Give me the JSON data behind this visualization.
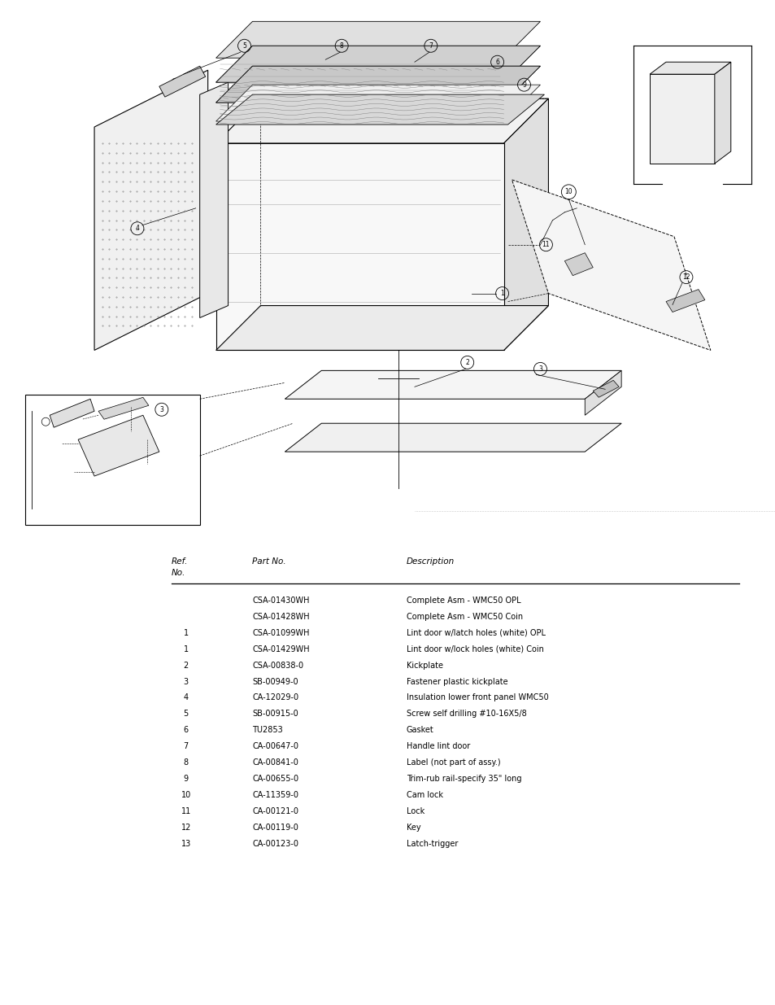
{
  "background_color": "#ffffff",
  "page_width": 9.54,
  "page_height": 12.35,
  "table_header_ref": "Ref.",
  "table_header_no": "No.",
  "table_header_part": "Part No.",
  "table_header_desc": "Description",
  "rows": [
    [
      "",
      "CSA-01430WH",
      "Complete Asm - WMC50 OPL"
    ],
    [
      "",
      "CSA-01428WH",
      "Complete Asm - WMC50 Coin"
    ],
    [
      "1",
      "CSA-01099WH",
      "Lint door w/latch holes (white) OPL"
    ],
    [
      "1",
      "CSA-01429WH",
      "Lint door w/lock holes (white) Coin"
    ],
    [
      "2",
      "CSA-00838-0",
      "Kickplate"
    ],
    [
      "3",
      "SB-00949-0",
      "Fastener plastic kickplate"
    ],
    [
      "4",
      "CA-12029-0",
      "Insulation lower front panel WMC50"
    ],
    [
      "5",
      "SB-00915-0",
      "Screw self drilling #10-16X5/8"
    ],
    [
      "6",
      "TU2853",
      "Gasket"
    ],
    [
      "7",
      "CA-00647-0",
      "Handle lint door"
    ],
    [
      "8",
      "CA-00841-0",
      "Label (not part of assy.)"
    ],
    [
      "9",
      "CA-00655-0",
      "Trim-rub rail-specify 35\" long"
    ],
    [
      "10",
      "CA-11359-0",
      "Cam lock"
    ],
    [
      "11",
      "CA-00121-0",
      "Lock"
    ],
    [
      "12",
      "CA-00119-0",
      "Key"
    ],
    [
      "13",
      "CA-00123-0",
      "Latch-trigger"
    ]
  ],
  "font_size_table": 7.0,
  "font_size_header": 7.5,
  "text_color": "#000000",
  "line_color": "#000000",
  "gray_fill": "#e8e8e8",
  "dark_fill": "#404040"
}
